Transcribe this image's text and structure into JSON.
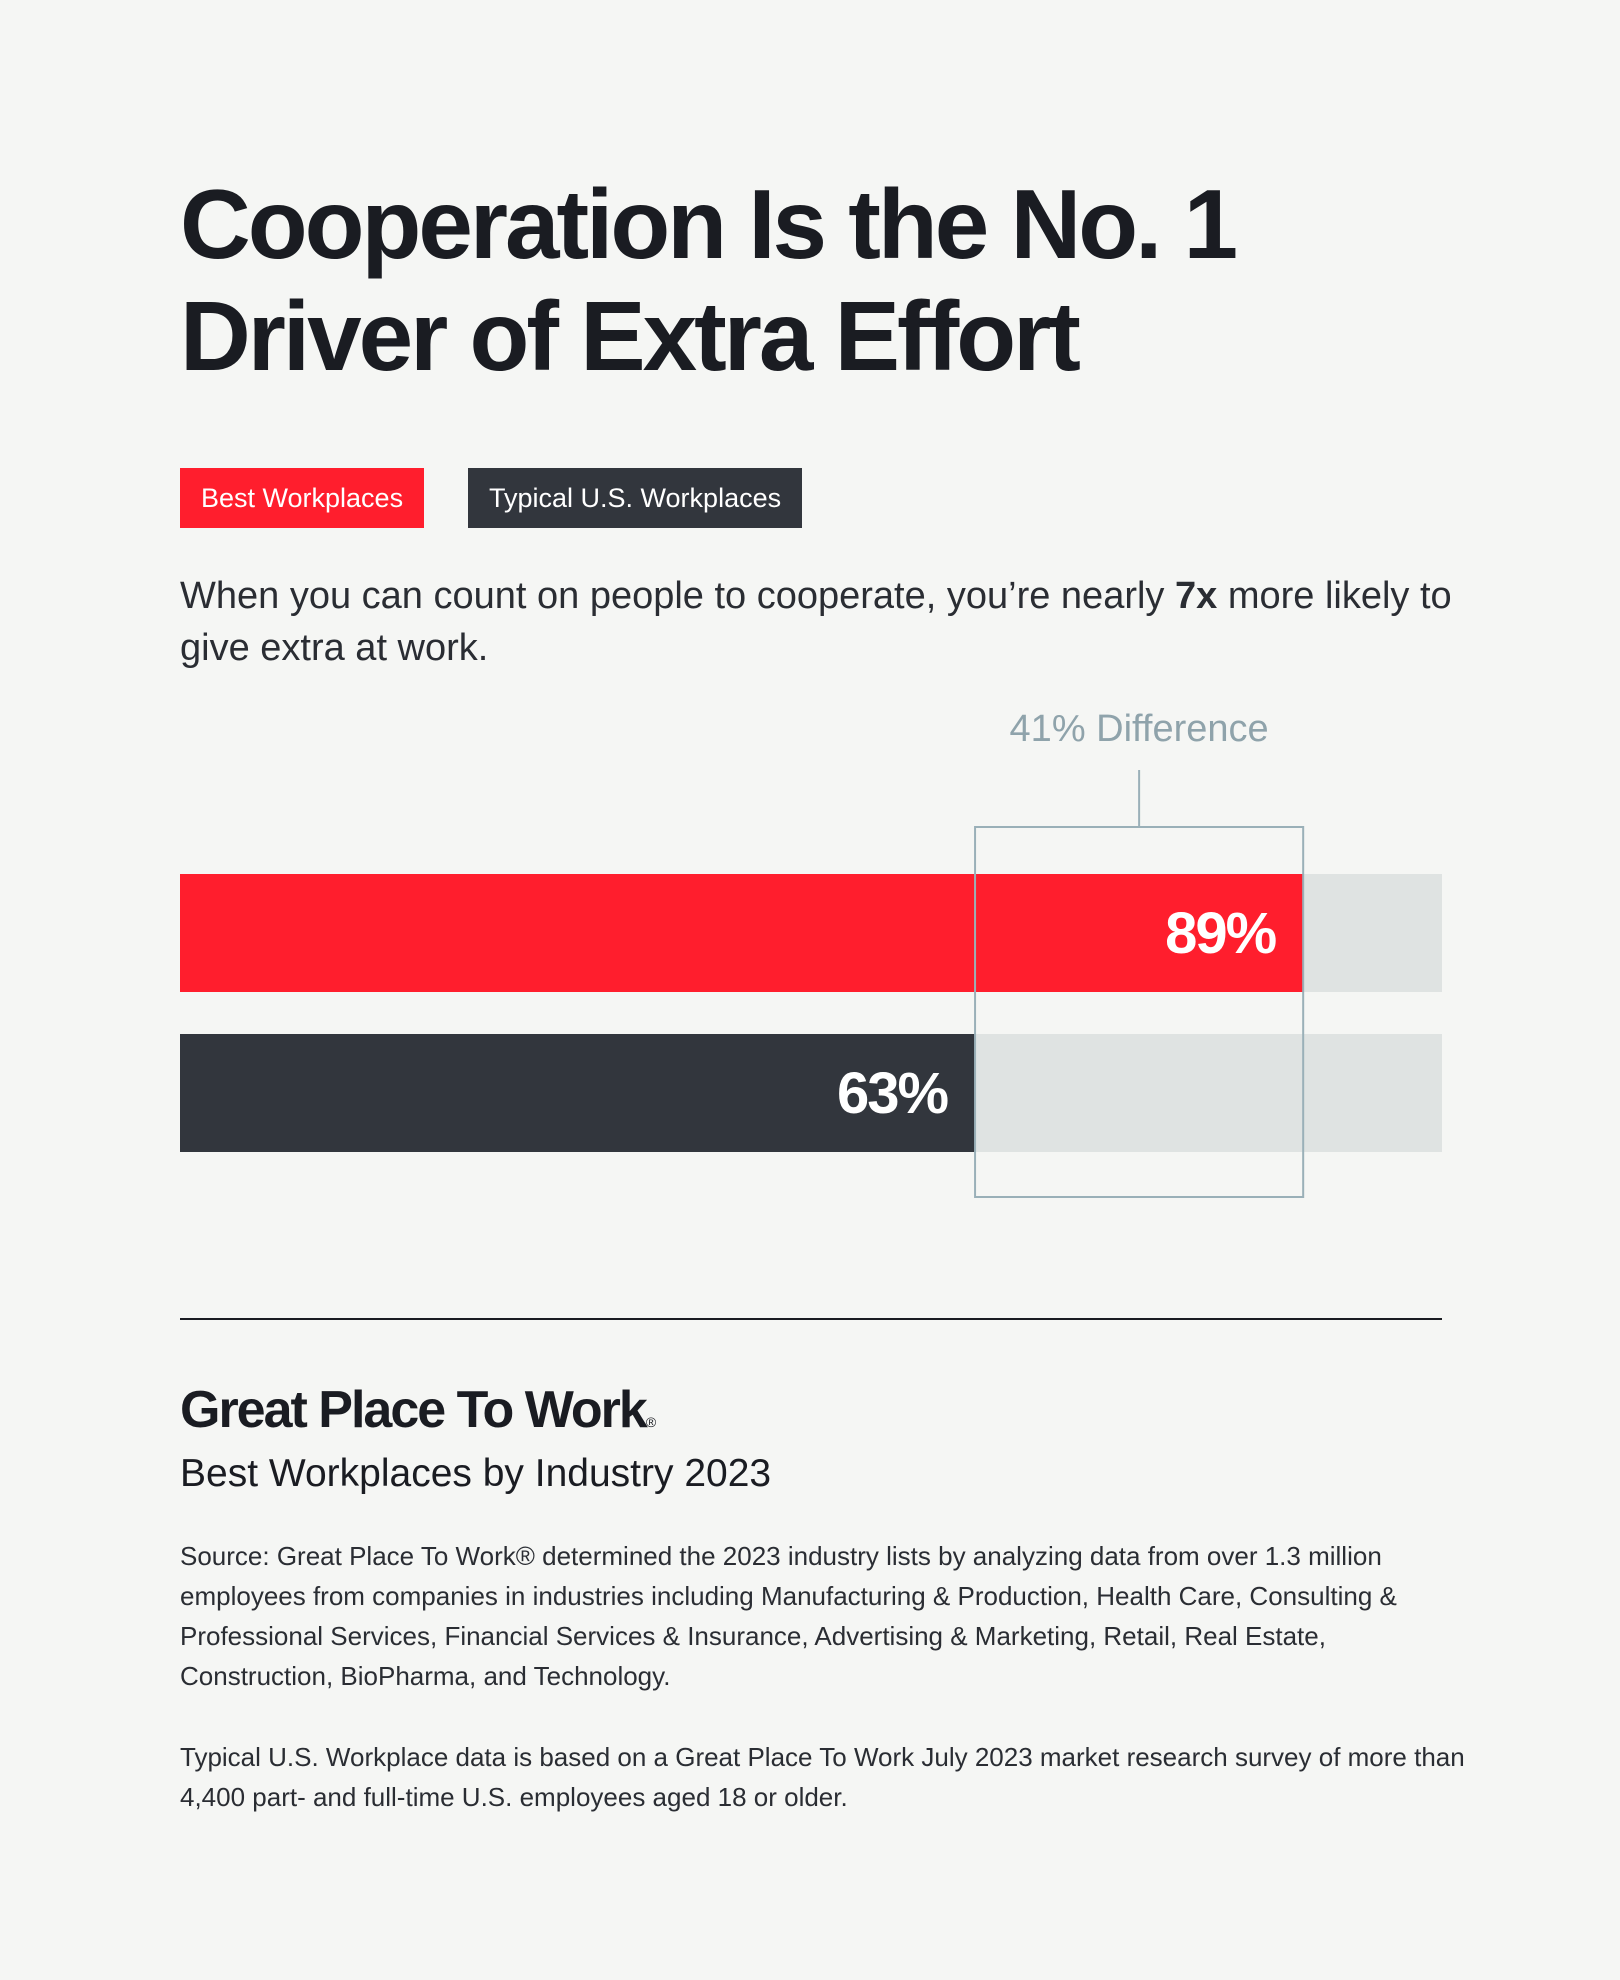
{
  "chart_data": {
    "type": "bar",
    "orientation": "horizontal",
    "title": "Cooperation Is the No. 1 Driver of Extra Effort",
    "subtitle_parts": [
      "When you can count on people to cooperate, you’re nearly ",
      "7x",
      " more likely to give extra at work."
    ],
    "annotation": "41% Difference",
    "xlim": [
      0,
      100
    ],
    "series": [
      {
        "name": "Best Workplaces",
        "color": "#ff1e2d",
        "values": [
          89
        ],
        "value_labels": [
          "89%"
        ]
      },
      {
        "name": "Typical U.S. Workplaces",
        "color": "#32363d",
        "values": [
          63
        ],
        "value_labels": [
          "63%"
        ]
      }
    ]
  },
  "footer": {
    "brand": "Great Place To Work",
    "brand_mark": "®",
    "report": "Best Workplaces by Industry 2023",
    "notes": [
      "Source: Great Place To Work® determined the 2023 industry lists by analyzing data from over 1.3 million employees from companies in industries including Manufacturing & Production, Health Care, Consulting & Professional Services, Financial Services & Insurance, Advertising & Marketing, Retail, Real Estate, Construction, BioPharma, and Technology.",
      "Typical U.S. Workplace data is based on a Great Place To Work July 2023 market research survey of more than 4,400 part- and full-time U.S. employees aged 18 or older."
    ]
  }
}
